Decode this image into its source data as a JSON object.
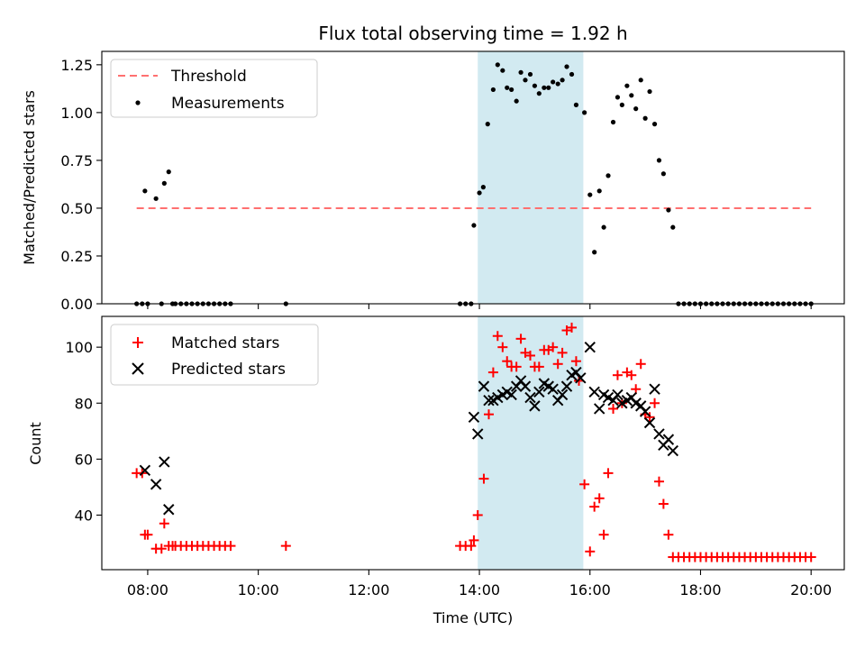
{
  "chart_data": [
    {
      "type": "scatter",
      "title": "Flux total observing time = 1.92 h",
      "xlabel": "",
      "ylabel": "Matched/Predicted stars",
      "xlim": [
        7.17,
        20.6
      ],
      "ylim": [
        0,
        1.32
      ],
      "yticks": [
        "0.00",
        "0.25",
        "0.50",
        "0.75",
        "1.00",
        "1.25"
      ],
      "ytick_values": [
        0,
        0.25,
        0.5,
        0.75,
        1.0,
        1.25
      ],
      "grid": false,
      "legend": "top-left",
      "shaded_region": {
        "x_start": 13.97,
        "x_end": 15.88,
        "color": "#add8e6"
      },
      "series": [
        {
          "name": "Threshold",
          "style": "dashed-line",
          "color": "#ff7070",
          "x": [
            7.8,
            20.0
          ],
          "y": [
            0.5,
            0.5
          ]
        },
        {
          "name": "Measurements",
          "style": "dot",
          "color": "#000000",
          "x": [
            7.8,
            7.9,
            7.95,
            8.0,
            8.15,
            8.25,
            8.3,
            8.38,
            8.45,
            8.5,
            8.6,
            8.7,
            8.8,
            8.9,
            9.0,
            9.1,
            9.2,
            9.3,
            9.4,
            9.5,
            10.5,
            13.65,
            13.75,
            13.85,
            13.9,
            14.0,
            14.07,
            14.15,
            14.25,
            14.33,
            14.42,
            14.5,
            14.58,
            14.67,
            14.75,
            14.83,
            14.92,
            15.0,
            15.08,
            15.17,
            15.25,
            15.33,
            15.42,
            15.5,
            15.58,
            15.67,
            15.75,
            15.9,
            16.0,
            16.08,
            16.17,
            16.25,
            16.33,
            16.42,
            16.5,
            16.58,
            16.67,
            16.75,
            16.83,
            16.92,
            17.0,
            17.08,
            17.17,
            17.25,
            17.33,
            17.42,
            17.5,
            17.6,
            17.7,
            17.8,
            17.9,
            18.0,
            18.1,
            18.2,
            18.3,
            18.4,
            18.5,
            18.6,
            18.7,
            18.8,
            18.9,
            19.0,
            19.1,
            19.2,
            19.3,
            19.4,
            19.5,
            19.6,
            19.7,
            19.8,
            19.9,
            20.0
          ],
          "y": [
            0.0,
            0.0,
            0.59,
            0.0,
            0.55,
            0.0,
            0.63,
            0.69,
            0.0,
            0.0,
            0.0,
            0.0,
            0.0,
            0.0,
            0.0,
            0.0,
            0.0,
            0.0,
            0.0,
            0.0,
            0.0,
            0.0,
            0.0,
            0.0,
            0.41,
            0.58,
            0.61,
            0.94,
            1.12,
            1.25,
            1.22,
            1.13,
            1.12,
            1.06,
            1.21,
            1.17,
            1.2,
            1.14,
            1.1,
            1.13,
            1.13,
            1.16,
            1.15,
            1.17,
            1.24,
            1.2,
            1.04,
            1.0,
            0.57,
            0.27,
            0.59,
            0.4,
            0.67,
            0.95,
            1.08,
            1.04,
            1.14,
            1.09,
            1.02,
            1.17,
            0.97,
            1.11,
            0.94,
            0.75,
            0.68,
            0.49,
            0.4,
            0.0,
            0.0,
            0.0,
            0.0,
            0.0,
            0.0,
            0.0,
            0.0,
            0.0,
            0.0,
            0.0,
            0.0,
            0.0,
            0.0,
            0.0,
            0.0,
            0.0,
            0.0,
            0.0,
            0.0,
            0.0,
            0.0,
            0.0,
            0.0,
            0.0
          ]
        }
      ]
    },
    {
      "type": "scatter",
      "title": "",
      "xlabel": "Time (UTC)",
      "ylabel": "Count",
      "xlim": [
        7.17,
        20.6
      ],
      "ylim": [
        20.5,
        111
      ],
      "xticks": [
        "08:00",
        "10:00",
        "12:00",
        "14:00",
        "16:00",
        "18:00",
        "20:00"
      ],
      "xtick_values": [
        8,
        10,
        12,
        14,
        16,
        18,
        20
      ],
      "yticks": [
        "40",
        "60",
        "80",
        "100"
      ],
      "ytick_values": [
        40,
        60,
        80,
        100
      ],
      "grid": false,
      "legend": "top-left",
      "shaded_region": {
        "x_start": 13.97,
        "x_end": 15.88,
        "color": "#add8e6"
      },
      "series": [
        {
          "name": "Matched stars",
          "style": "plus",
          "color": "#ff0000",
          "x": [
            7.8,
            7.9,
            7.95,
            8.0,
            8.15,
            8.25,
            8.3,
            8.38,
            8.45,
            8.5,
            8.6,
            8.7,
            8.8,
            8.9,
            9.0,
            9.1,
            9.2,
            9.3,
            9.4,
            9.5,
            10.5,
            13.65,
            13.75,
            13.85,
            13.9,
            13.97,
            14.08,
            14.17,
            14.25,
            14.33,
            14.42,
            14.5,
            14.58,
            14.67,
            14.75,
            14.83,
            14.92,
            15.0,
            15.08,
            15.17,
            15.25,
            15.33,
            15.42,
            15.5,
            15.58,
            15.67,
            15.75,
            15.8,
            15.9,
            16.0,
            16.08,
            16.17,
            16.25,
            16.33,
            16.42,
            16.5,
            16.58,
            16.67,
            16.75,
            16.83,
            16.92,
            17.0,
            17.08,
            17.17,
            17.25,
            17.33,
            17.42,
            17.5,
            17.6,
            17.7,
            17.8,
            17.9,
            18.0,
            18.1,
            18.2,
            18.3,
            18.4,
            18.5,
            18.6,
            18.7,
            18.8,
            18.9,
            19.0,
            19.1,
            19.2,
            19.3,
            19.4,
            19.5,
            19.6,
            19.7,
            19.8,
            19.9,
            20.0
          ],
          "y": [
            55,
            55,
            33,
            33,
            28,
            28,
            37,
            29,
            29,
            29,
            29,
            29,
            29,
            29,
            29,
            29,
            29,
            29,
            29,
            29,
            29,
            29,
            29,
            29,
            31,
            40,
            53,
            76,
            91,
            104,
            100,
            95,
            93,
            93,
            103,
            98,
            97,
            93,
            93,
            99,
            99,
            100,
            94,
            98,
            106,
            107,
            95,
            88,
            51,
            27,
            43,
            46,
            33,
            55,
            78,
            90,
            80,
            91,
            90,
            85,
            94,
            76,
            75,
            80,
            52,
            44,
            33,
            25,
            25,
            25,
            25,
            25,
            25,
            25,
            25,
            25,
            25,
            25,
            25,
            25,
            25,
            25,
            25,
            25,
            25,
            25,
            25,
            25,
            25,
            25,
            25,
            25,
            25
          ]
        },
        {
          "name": "Predicted stars",
          "style": "x",
          "color": "#000000",
          "x": [
            7.95,
            8.15,
            8.3,
            8.38,
            13.9,
            13.97,
            14.08,
            14.17,
            14.25,
            14.33,
            14.42,
            14.5,
            14.58,
            14.67,
            14.75,
            14.83,
            14.92,
            15.0,
            15.08,
            15.17,
            15.25,
            15.33,
            15.42,
            15.5,
            15.58,
            15.67,
            15.75,
            15.83,
            16.0,
            16.08,
            16.17,
            16.25,
            16.33,
            16.42,
            16.5,
            16.58,
            16.67,
            16.75,
            16.83,
            16.92,
            17.0,
            17.08,
            17.17,
            17.25,
            17.33,
            17.42,
            17.5
          ],
          "y": [
            56,
            51,
            59,
            42,
            75,
            69,
            86,
            81,
            81,
            82,
            83,
            84,
            83,
            86,
            88,
            86,
            82,
            79,
            84,
            87,
            86,
            85,
            81,
            83,
            86,
            90,
            91,
            89,
            100,
            84,
            78,
            83,
            82,
            81,
            83,
            80,
            81,
            82,
            80,
            79,
            77,
            73,
            85,
            69,
            65,
            67,
            63
          ]
        }
      ]
    }
  ]
}
